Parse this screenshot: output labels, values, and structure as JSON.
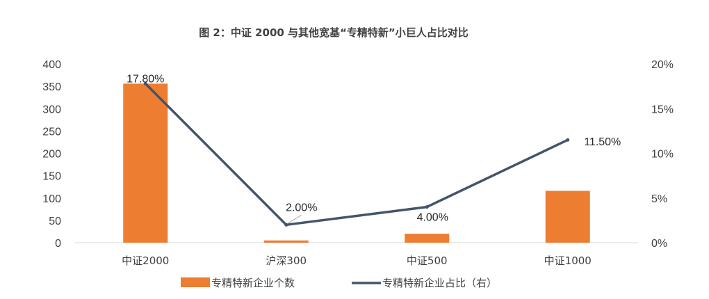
{
  "chart_data": {
    "type": "bar+line",
    "title": "图 2：中证 2000 与其他宽基“专精特新”小巨人占比对比",
    "categories": [
      "中证2000",
      "沪深300",
      "中证500",
      "中证1000"
    ],
    "series": [
      {
        "name": "专精特新企业个数",
        "kind": "bar",
        "axis": "left",
        "values": [
          356,
          5,
          20,
          116
        ],
        "color": "#ED7D31"
      },
      {
        "name": "专精特新企业占比（右）",
        "kind": "line",
        "axis": "right",
        "values": [
          17.8,
          2.0,
          4.0,
          11.5
        ],
        "labels": [
          "17.80%",
          "2.00%",
          "4.00%",
          "11.50%"
        ],
        "color": "#44546A"
      }
    ],
    "y_left": {
      "min": 0,
      "max": 400,
      "ticks": [
        "0",
        "50",
        "100",
        "150",
        "200",
        "250",
        "300",
        "350",
        "400"
      ]
    },
    "y_right": {
      "min": 0,
      "max": 20,
      "ticks": [
        "0%",
        "5%",
        "10%",
        "15%",
        "20%"
      ]
    },
    "grid": false,
    "legend_position": "bottom"
  }
}
